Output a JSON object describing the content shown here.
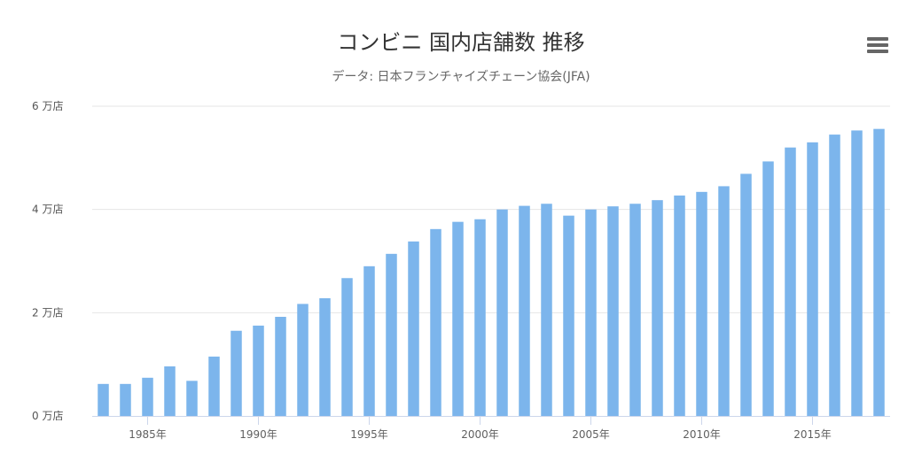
{
  "chart_data": {
    "type": "bar",
    "title": "コンビニ 国内店舗数 推移",
    "subtitle": "データ: 日本フランチャイズチェーン協会(JFA)",
    "xlabel": "",
    "ylabel": "",
    "x": [
      1983,
      1984,
      1985,
      1986,
      1987,
      1988,
      1989,
      1990,
      1991,
      1992,
      1993,
      1994,
      1995,
      1996,
      1997,
      1998,
      1999,
      2000,
      2001,
      2002,
      2003,
      2004,
      2005,
      2006,
      2007,
      2008,
      2009,
      2010,
      2011,
      2012,
      2013,
      2014,
      2015,
      2016,
      2017,
      2018
    ],
    "values": [
      6200,
      6200,
      7400,
      9600,
      6800,
      11500,
      16500,
      17500,
      19200,
      21700,
      22800,
      26700,
      29000,
      31400,
      33800,
      36200,
      37600,
      38100,
      40000,
      40700,
      41100,
      38800,
      40000,
      40600,
      41100,
      41800,
      42700,
      43400,
      44500,
      46900,
      49300,
      52000,
      53000,
      54500,
      55300,
      55600
    ],
    "xticks": [
      {
        "value": 1985,
        "label": "1985年"
      },
      {
        "value": 1990,
        "label": "1990年"
      },
      {
        "value": 1995,
        "label": "1995年"
      },
      {
        "value": 2000,
        "label": "2000年"
      },
      {
        "value": 2005,
        "label": "2005年"
      },
      {
        "value": 2010,
        "label": "2010年"
      },
      {
        "value": 2015,
        "label": "2015年"
      }
    ],
    "yticks": [
      {
        "value": 0,
        "label": "0 万店"
      },
      {
        "value": 20000,
        "label": "2 万店"
      },
      {
        "value": 40000,
        "label": "4 万店"
      },
      {
        "value": 60000,
        "label": "6 万店"
      }
    ],
    "ylim": [
      0,
      60000
    ],
    "grid": true,
    "legend": "none",
    "colors": {
      "bar": "#7cb5ec",
      "grid": "#e6e6e6",
      "axis": "#ccd6eb"
    }
  },
  "menu": {
    "icon": "hamburger-menu-icon"
  }
}
